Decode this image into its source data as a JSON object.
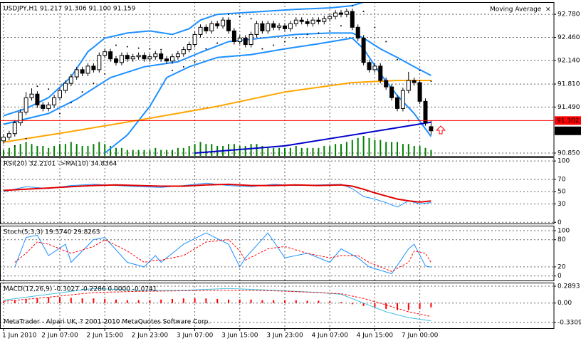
{
  "footer": "MetaTrader - Alpari UK, ? 2001-2010 MetaQuotes Software Corp.",
  "chart_data": [
    {
      "type": "candlestick",
      "title": "USDJPY,H1  91.217 91.306 91.100 91.159",
      "indicator": "Moving Average",
      "close_button": "×",
      "xticks": [
        {
          "value": 0,
          "label": "1 Jun 2010"
        },
        {
          "value": 10,
          "label": "2 Jun 07:00"
        },
        {
          "value": 18,
          "label": "2 Jun 15:00"
        },
        {
          "value": 26,
          "label": "2 Jun 23:00"
        },
        {
          "value": 34,
          "label": "3 Jun 07:00"
        },
        {
          "value": 42,
          "label": "3 Jun 15:00"
        },
        {
          "value": 50,
          "label": "3 Jun 23:00"
        },
        {
          "value": 58,
          "label": "4 Jun 07:00"
        },
        {
          "value": 66,
          "label": "4 Jun 15:00"
        },
        {
          "value": 74,
          "label": "7 Jun 00:00"
        }
      ],
      "open": [
        91.02,
        91.07,
        91.12,
        91.27,
        91.42,
        91.62,
        91.67,
        91.52,
        91.47,
        91.52,
        91.62,
        91.72,
        91.82,
        91.91,
        92.01,
        91.96,
        92.06,
        92.01,
        92.21,
        92.26,
        92.16,
        92.11,
        92.21,
        92.16,
        92.19,
        92.21,
        92.16,
        92.19,
        92.23,
        92.16,
        92.13,
        92.19,
        92.23,
        92.29,
        92.36,
        92.5,
        92.6,
        92.55,
        92.65,
        92.62,
        92.7,
        92.55,
        92.4,
        92.45,
        92.36,
        92.5,
        92.65,
        92.55,
        92.65,
        92.6,
        92.62,
        92.58,
        92.65,
        92.7,
        92.68,
        92.65,
        92.7,
        92.68,
        92.72,
        92.75,
        92.8,
        92.78,
        92.82,
        92.6,
        92.45,
        92.11,
        92.01,
        92.06,
        91.86,
        91.77,
        91.62,
        91.47,
        91.72,
        91.86,
        91.83,
        91.57,
        91.217
      ],
      "high": [
        91.11,
        91.16,
        91.31,
        91.46,
        91.7,
        91.75,
        91.71,
        91.56,
        91.56,
        91.66,
        91.76,
        91.86,
        91.95,
        92.05,
        92.05,
        92.1,
        92.1,
        92.25,
        92.3,
        92.3,
        92.2,
        92.25,
        92.25,
        92.23,
        92.25,
        92.25,
        92.23,
        92.27,
        92.27,
        92.2,
        92.23,
        92.27,
        92.33,
        92.4,
        92.54,
        92.64,
        92.64,
        92.69,
        92.69,
        92.74,
        92.74,
        92.59,
        92.49,
        92.49,
        92.54,
        92.69,
        92.69,
        92.69,
        92.69,
        92.66,
        92.66,
        92.69,
        92.74,
        92.74,
        92.72,
        92.74,
        92.74,
        92.76,
        92.79,
        92.84,
        92.84,
        92.86,
        92.86,
        92.64,
        92.49,
        92.15,
        92.1,
        92.1,
        91.9,
        91.81,
        91.66,
        91.76,
        91.98,
        91.9,
        91.87,
        91.61,
        91.306
      ],
      "low": [
        90.98,
        91.03,
        91.08,
        91.23,
        91.38,
        91.58,
        91.48,
        91.43,
        91.43,
        91.48,
        91.58,
        91.68,
        91.78,
        91.87,
        91.92,
        91.92,
        91.97,
        91.97,
        92.17,
        92.12,
        92.07,
        92.07,
        92.12,
        92.12,
        92.15,
        92.12,
        92.12,
        92.15,
        92.12,
        92.09,
        92.09,
        92.15,
        92.19,
        92.25,
        92.32,
        92.46,
        92.51,
        92.51,
        92.58,
        92.58,
        92.51,
        92.36,
        92.36,
        92.32,
        92.32,
        92.46,
        92.51,
        92.51,
        92.56,
        92.56,
        92.54,
        92.54,
        92.61,
        92.64,
        92.61,
        92.61,
        92.64,
        92.64,
        92.68,
        92.71,
        92.74,
        92.74,
        92.56,
        92.41,
        92.07,
        91.97,
        91.97,
        91.82,
        91.73,
        91.58,
        91.43,
        91.43,
        91.68,
        91.79,
        91.53,
        91.23,
        91.1
      ],
      "close": [
        91.07,
        91.12,
        91.27,
        91.42,
        91.62,
        91.67,
        91.52,
        91.47,
        91.52,
        91.62,
        91.72,
        91.82,
        91.91,
        92.01,
        91.96,
        92.06,
        92.01,
        92.21,
        92.26,
        92.16,
        92.11,
        92.21,
        92.16,
        92.19,
        92.21,
        92.16,
        92.19,
        92.23,
        92.16,
        92.13,
        92.19,
        92.23,
        92.29,
        92.36,
        92.5,
        92.6,
        92.55,
        92.65,
        92.62,
        92.7,
        92.55,
        92.4,
        92.45,
        92.36,
        92.5,
        92.65,
        92.55,
        92.65,
        92.6,
        92.62,
        92.58,
        92.65,
        92.7,
        92.68,
        92.65,
        92.7,
        92.68,
        92.72,
        92.75,
        92.8,
        92.78,
        92.82,
        92.6,
        92.45,
        92.11,
        92.01,
        92.06,
        91.86,
        91.77,
        91.62,
        91.47,
        91.72,
        91.86,
        91.83,
        91.57,
        91.27,
        91.159
      ],
      "up_color": "#ffffff",
      "down_color": "#000000",
      "outline_color": "#000000",
      "ylim": [
        90.81,
        92.95
      ],
      "yticks": [
        {
          "value": 92.78,
          "label": "92.780"
        },
        {
          "value": 92.46,
          "label": "92.460"
        },
        {
          "value": 92.14,
          "label": "92.140"
        },
        {
          "value": 91.81,
          "label": "91.810"
        },
        {
          "value": 91.49,
          "label": "91.490"
        },
        {
          "value": 90.85,
          "label": "90.850"
        }
      ],
      "grid": true,
      "overlays": [
        {
          "color": "#1e90ff",
          "x": [
            0,
            4,
            8,
            12,
            15,
            18,
            22,
            26,
            30,
            33,
            35,
            38,
            42,
            46,
            52,
            58,
            62,
            64
          ],
          "values": [
            91.37,
            91.47,
            91.62,
            91.91,
            92.26,
            92.45,
            92.52,
            92.55,
            92.5,
            92.58,
            92.7,
            92.78,
            92.8,
            92.82,
            92.85,
            92.87,
            92.9,
            92.95
          ]
        },
        {
          "color": "#1e90ff",
          "x": [
            0,
            8,
            13,
            19,
            25,
            31,
            35,
            40,
            46,
            52,
            58,
            62,
            64,
            67,
            70,
            73,
            76
          ],
          "values": [
            91.25,
            91.4,
            91.6,
            91.9,
            92.05,
            92.12,
            92.25,
            92.4,
            92.45,
            92.5,
            92.52,
            92.52,
            92.45,
            92.3,
            92.18,
            92.05,
            91.93
          ]
        },
        {
          "color": "#1e90ff",
          "x": [
            18,
            22,
            26,
            29,
            33,
            38,
            44,
            50,
            56,
            62,
            64,
            67,
            70,
            73,
            76
          ],
          "values": [
            90.85,
            91.1,
            91.5,
            91.9,
            92.05,
            92.18,
            92.22,
            92.3,
            92.37,
            92.45,
            92.3,
            91.95,
            91.65,
            91.4,
            91.08
          ]
        },
        {
          "color": "#ffa500",
          "x": [
            0,
            12,
            25,
            38,
            50,
            62,
            70,
            76
          ],
          "values": [
            91.0,
            91.15,
            91.32,
            91.5,
            91.7,
            91.83,
            91.86,
            91.86
          ]
        },
        {
          "color": "#0000cd",
          "x": [
            34,
            50,
            62,
            76
          ],
          "values": [
            90.85,
            90.95,
            91.1,
            91.28
          ]
        }
      ],
      "sar": {
        "color": "#000000",
        "x": [
          2,
          4,
          6,
          8,
          10,
          12,
          14,
          16,
          18,
          20,
          22,
          24,
          26,
          28,
          30,
          32,
          34,
          36,
          38,
          40,
          42,
          44,
          46,
          48,
          50,
          52,
          54,
          56,
          58,
          60,
          62,
          64,
          66,
          68,
          70,
          72,
          74,
          76
        ],
        "values": [
          90.95,
          91.05,
          91.78,
          91.74,
          91.4,
          91.55,
          91.7,
          91.82,
          91.95,
          92.35,
          92.33,
          92.31,
          92.3,
          92.29,
          92.0,
          92.05,
          92.12,
          92.3,
          92.38,
          92.78,
          92.75,
          92.72,
          92.3,
          92.35,
          92.4,
          92.45,
          92.5,
          92.52,
          92.55,
          92.62,
          92.9,
          92.82,
          92.6,
          92.4,
          92.15,
          91.3,
          92.0,
          91.85
        ]
      },
      "volume": {
        "color": "#008000",
        "values": [
          3,
          4,
          5,
          6,
          7,
          6,
          5,
          5,
          4,
          5,
          6,
          6,
          7,
          6,
          5,
          5,
          6,
          7,
          6,
          5,
          4,
          4,
          3,
          3,
          3,
          3,
          3,
          4,
          3,
          3,
          3,
          4,
          4,
          5,
          6,
          7,
          6,
          6,
          5,
          5,
          6,
          6,
          5,
          5,
          6,
          6,
          5,
          4,
          4,
          4,
          4,
          4,
          5,
          4,
          4,
          4,
          4,
          5,
          5,
          6,
          6,
          7,
          8,
          9,
          10,
          9,
          8,
          8,
          7,
          7,
          7,
          6,
          6,
          5,
          5,
          4,
          3
        ]
      },
      "hline": {
        "value": 91.302,
        "label": "91.302",
        "color": "#ff0000"
      },
      "last_price": {
        "value": 91.159,
        "label": "91.159",
        "color": "#000000"
      }
    },
    {
      "type": "line",
      "title": "RSI(20) 32.2101  ->MA(10) 34.8364",
      "ylim": [
        -2,
        106
      ],
      "yticks": [
        100,
        70,
        50,
        30,
        0
      ],
      "series": [
        {
          "color": "#1e90ff",
          "width": 1,
          "x": [
            0,
            4,
            8,
            12,
            16,
            20,
            24,
            28,
            32,
            36,
            40,
            44,
            48,
            52,
            56,
            60,
            62,
            64,
            66,
            68,
            70,
            72,
            74,
            76
          ],
          "values": [
            50,
            58,
            55,
            60,
            62,
            60,
            58,
            57,
            60,
            64,
            60,
            58,
            62,
            60,
            61,
            62,
            55,
            42,
            38,
            32,
            25,
            35,
            30,
            32.2101
          ]
        },
        {
          "color": "#e00000",
          "width": 2,
          "x": [
            0,
            4,
            8,
            12,
            16,
            20,
            24,
            28,
            32,
            36,
            40,
            44,
            48,
            52,
            56,
            60,
            62,
            64,
            66,
            68,
            70,
            72,
            74,
            76
          ],
          "values": [
            52,
            54,
            56,
            58,
            60,
            61,
            60,
            59,
            59,
            61,
            62,
            60,
            60,
            61,
            60,
            61,
            59,
            54,
            48,
            43,
            38,
            35,
            33,
            34.8364
          ]
        }
      ]
    },
    {
      "type": "line",
      "title": "Stoch(5,3,3) 19.5740 29.8263",
      "ylim": [
        -10,
        111
      ],
      "yticks": [
        100,
        80,
        20,
        0
      ],
      "series": [
        {
          "color": "#1e90ff",
          "width": 1,
          "x": [
            2,
            4,
            6,
            8,
            11,
            12,
            16,
            18,
            22,
            25,
            27,
            28,
            32,
            36,
            40,
            42,
            43,
            47,
            50,
            54,
            58,
            60,
            63,
            65,
            69,
            72,
            73,
            75,
            76
          ],
          "values": [
            20,
            85,
            90,
            45,
            70,
            30,
            80,
            85,
            30,
            20,
            45,
            30,
            70,
            95,
            70,
            20,
            40,
            95,
            40,
            50,
            30,
            60,
            40,
            20,
            5,
            60,
            70,
            22,
            19.574
          ]
        },
        {
          "color": "#ff0000",
          "width": 1,
          "dash": true,
          "x": [
            2,
            4,
            6,
            8,
            11,
            12,
            16,
            18,
            22,
            25,
            27,
            28,
            32,
            36,
            40,
            42,
            43,
            47,
            50,
            54,
            58,
            60,
            63,
            65,
            69,
            72,
            73,
            75,
            76
          ],
          "values": [
            30,
            50,
            75,
            70,
            55,
            50,
            65,
            80,
            55,
            30,
            35,
            35,
            45,
            75,
            80,
            55,
            35,
            60,
            65,
            50,
            40,
            45,
            45,
            30,
            10,
            30,
            55,
            50,
            29.8263
          ]
        }
      ]
    },
    {
      "type": "macd",
      "title": "MACD(12,26,9) -0.3027 -0.2286 0.0000 -0.0741",
      "ylim": [
        -0.43,
        0.35
      ],
      "yticks": [
        0.2893,
        {
          "value": 0,
          "label": "0.00"
        },
        -0.3309
      ],
      "histogram": {
        "color": "#ff0000",
        "x": [
          0,
          2,
          4,
          6,
          8,
          10,
          12,
          14,
          16,
          18,
          20,
          22,
          24,
          26,
          28,
          30,
          32,
          34,
          36,
          38,
          40,
          42,
          44,
          46,
          48,
          50,
          52,
          54,
          56,
          58,
          60,
          62,
          64,
          66,
          68,
          70,
          72,
          74,
          76
        ],
        "values": [
          0.02,
          0.04,
          0.06,
          0.08,
          0.1,
          0.1,
          0.09,
          0.08,
          0.08,
          0.07,
          0.06,
          0.05,
          0.05,
          0.05,
          0.06,
          0.07,
          0.08,
          0.08,
          0.08,
          0.07,
          0.06,
          0.06,
          0.06,
          0.05,
          0.05,
          0.05,
          0.05,
          0.04,
          0.04,
          0.03,
          0.02,
          -0.02,
          -0.05,
          -0.08,
          -0.1,
          -0.12,
          -0.12,
          -0.1,
          -0.0741
        ]
      },
      "series": [
        {
          "color": "#40c0e0",
          "width": 1,
          "x": [
            0,
            8,
            16,
            24,
            32,
            40,
            48,
            56,
            60,
            64,
            68,
            72,
            76
          ],
          "values": [
            0.05,
            0.15,
            0.25,
            0.22,
            0.22,
            0.25,
            0.22,
            0.18,
            0.15,
            0.0,
            -0.15,
            -0.25,
            -0.3027
          ]
        },
        {
          "color": "#ff0000",
          "width": 1,
          "dash": true,
          "x": [
            0,
            8,
            16,
            24,
            32,
            40,
            48,
            56,
            60,
            64,
            68,
            72,
            76
          ],
          "values": [
            0.03,
            0.1,
            0.18,
            0.2,
            0.21,
            0.22,
            0.21,
            0.18,
            0.16,
            0.08,
            -0.03,
            -0.15,
            -0.2286
          ]
        }
      ]
    }
  ]
}
